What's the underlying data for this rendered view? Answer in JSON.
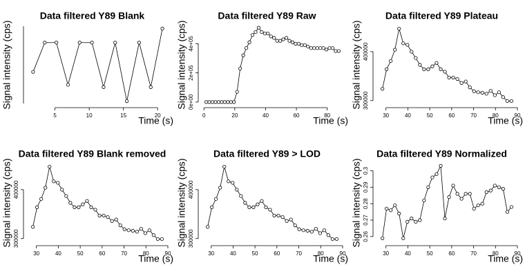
{
  "chart_data": [
    {
      "type": "line",
      "title": "Data filtered Y89 Blank",
      "xlabel": "Time (s)",
      "ylabel": "Signal intensity (cps)",
      "color": "#000000",
      "x": [
        1.8,
        3.5,
        5.2,
        6.9,
        8.6,
        10.4,
        12.1,
        13.8,
        15.5,
        17.3,
        19.0,
        20.7
      ],
      "values": [
        25,
        50,
        50,
        14,
        50,
        50,
        12,
        50,
        0,
        50,
        12,
        62
      ],
      "xlim": [
        1,
        21.5
      ],
      "ylim": [
        -2,
        64
      ],
      "xticks": [
        5,
        10,
        15,
        20
      ]
    },
    {
      "type": "line",
      "title": "Data filtered Y89 Raw",
      "xlabel": "Time (s)",
      "ylabel": "Signal intensity (cps)",
      "color": "#000000",
      "x": [
        1.5,
        3.5,
        5.5,
        7.5,
        9.5,
        11.5,
        13.5,
        15.5,
        17.5,
        19.5,
        21.5,
        23.5,
        25.5,
        27.5,
        29.5,
        31.5,
        33.5,
        35.5,
        37.5,
        39.5,
        41.5,
        43.5,
        45.5,
        47.5,
        49.5,
        51.5,
        53.5,
        55.5,
        57.5,
        59.5,
        61.5,
        63.5,
        65.5,
        67.5,
        69.5,
        71.5,
        73.5,
        75.5,
        77.5,
        79.5,
        81.5,
        83.5,
        85.5,
        87.5
      ],
      "values": [
        0,
        0,
        0,
        0,
        0,
        0,
        0,
        0,
        0,
        0,
        70000,
        230000,
        320000,
        370000,
        410000,
        460000,
        480000,
        510000,
        480000,
        470000,
        470000,
        450000,
        440000,
        420000,
        420000,
        430000,
        440000,
        420000,
        410000,
        400000,
        400000,
        390000,
        390000,
        380000,
        370000,
        370000,
        370000,
        370000,
        370000,
        360000,
        370000,
        370000,
        350000,
        350000
      ],
      "xlim": [
        -1,
        90
      ],
      "ylim": [
        -10000,
        520000
      ],
      "xticks": [
        0,
        20,
        40,
        60,
        80
      ],
      "yticks": [
        {
          "value": 0,
          "label": "0e+00"
        },
        {
          "value": 200000,
          "label": "2e+05"
        },
        {
          "value": 400000,
          "label": "4e+05"
        }
      ]
    },
    {
      "type": "line",
      "title": "Data filtered Y89 Plateau",
      "xlabel": "Time (s)",
      "ylabel": "Signal intensity (cps)",
      "color": "#000000",
      "x": [
        28.4,
        30.3,
        32.2,
        34.1,
        36.0,
        37.9,
        39.8,
        41.7,
        43.6,
        45.5,
        47.4,
        49.3,
        51.2,
        53.1,
        55.0,
        56.9,
        58.8,
        60.7,
        62.6,
        64.5,
        66.4,
        68.3,
        70.2,
        72.1,
        74.0,
        75.9,
        77.8,
        79.7,
        81.6,
        83.5,
        85.4,
        87.3
      ],
      "values": [
        324000,
        364000,
        381000,
        404000,
        447000,
        417000,
        414000,
        400000,
        387000,
        373000,
        364000,
        364000,
        370000,
        377000,
        364000,
        359000,
        347000,
        347000,
        344000,
        336000,
        339000,
        327000,
        319000,
        317000,
        316000,
        314000,
        320000,
        311000,
        317000,
        307000,
        299000,
        299000
      ],
      "xlim": [
        26,
        90
      ],
      "ylim": [
        294000,
        452000
      ],
      "xticks": [
        30,
        40,
        50,
        60,
        70,
        80,
        90
      ],
      "yticks": [
        300000,
        400000
      ]
    },
    {
      "type": "line",
      "title": "Data filtered Y89 Blank removed",
      "xlabel": "Time (s)",
      "ylabel": "Signal intensity (cps)",
      "color": "#000000",
      "x": [
        28.4,
        30.3,
        32.2,
        34.1,
        36.0,
        37.9,
        39.8,
        41.7,
        43.6,
        45.5,
        47.4,
        49.3,
        51.2,
        53.1,
        55.0,
        56.9,
        58.8,
        60.7,
        62.6,
        64.5,
        66.4,
        68.3,
        70.2,
        72.1,
        74.0,
        75.9,
        77.8,
        79.7,
        81.6,
        83.5,
        85.4,
        87.3
      ],
      "values": [
        324000,
        364000,
        381000,
        404000,
        447000,
        417000,
        414000,
        400000,
        387000,
        373000,
        364000,
        364000,
        370000,
        377000,
        364000,
        359000,
        347000,
        347000,
        344000,
        336000,
        339000,
        327000,
        319000,
        317000,
        316000,
        314000,
        320000,
        311000,
        317000,
        307000,
        299000,
        299000
      ],
      "xlim": [
        26,
        90
      ],
      "ylim": [
        294000,
        452000
      ],
      "xticks": [
        30,
        40,
        50,
        60,
        70,
        80,
        90
      ],
      "yticks": [
        300000,
        400000
      ]
    },
    {
      "type": "line",
      "title": "Data filtered Y89 > LOD",
      "xlabel": "Time (s)",
      "ylabel": "Signal intensity (cps)",
      "color": "#000000",
      "x": [
        28.4,
        30.3,
        32.2,
        34.1,
        36.0,
        37.9,
        39.8,
        41.7,
        43.6,
        45.5,
        47.4,
        49.3,
        51.2,
        53.1,
        55.0,
        56.9,
        58.8,
        60.7,
        62.6,
        64.5,
        66.4,
        68.3,
        70.2,
        72.1,
        74.0,
        75.9,
        77.8,
        79.7,
        81.6,
        83.5,
        85.4,
        87.3
      ],
      "values": [
        324000,
        364000,
        381000,
        404000,
        447000,
        417000,
        414000,
        400000,
        387000,
        373000,
        364000,
        364000,
        370000,
        377000,
        364000,
        359000,
        347000,
        347000,
        344000,
        336000,
        339000,
        327000,
        319000,
        317000,
        316000,
        314000,
        320000,
        311000,
        317000,
        307000,
        299000,
        299000
      ],
      "xlim": [
        26,
        90
      ],
      "ylim": [
        294000,
        452000
      ],
      "xticks": [
        30,
        40,
        50,
        60,
        70,
        80,
        90
      ],
      "yticks": [
        300000,
        400000
      ]
    },
    {
      "type": "line",
      "title": "Data filtered Y89 Normalized",
      "xlabel": "Time (s)",
      "ylabel": "Signal intensity (cps)",
      "color": "#000000",
      "x": [
        28.4,
        30.3,
        32.2,
        34.1,
        36.0,
        37.9,
        39.8,
        41.7,
        43.6,
        45.5,
        47.4,
        49.3,
        51.2,
        53.1,
        55.0,
        56.9,
        58.8,
        60.7,
        62.6,
        64.5,
        66.4,
        68.3,
        70.2,
        72.1,
        74.0,
        75.9,
        77.8,
        79.7,
        81.6,
        83.5,
        85.4,
        87.3
      ],
      "values": [
        0.259,
        0.277,
        0.276,
        0.279,
        0.274,
        0.259,
        0.269,
        0.271,
        0.269,
        0.27,
        0.282,
        0.29,
        0.296,
        0.298,
        0.303,
        0.271,
        0.284,
        0.291,
        0.286,
        0.283,
        0.286,
        0.286,
        0.277,
        0.279,
        0.28,
        0.287,
        0.288,
        0.291,
        0.29,
        0.289,
        0.275,
        0.278
      ],
      "xlim": [
        26,
        90
      ],
      "ylim": [
        0.257,
        0.304
      ],
      "xticks": [
        30,
        40,
        50,
        60,
        70,
        80,
        90
      ],
      "yticks": [
        0.26,
        0.27,
        0.28,
        0.29,
        0.3
      ]
    }
  ]
}
